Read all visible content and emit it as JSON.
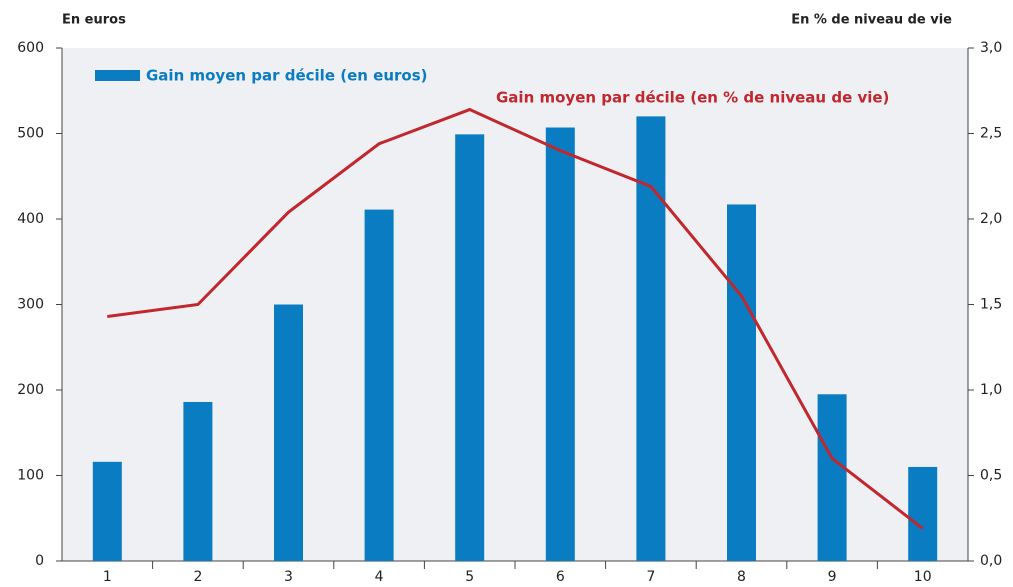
{
  "chart_data": {
    "type": "combo",
    "y_label": "En euros",
    "y2_label": "En % de niveau de vie",
    "categories": [
      "1",
      "2",
      "3",
      "4",
      "5",
      "6",
      "7",
      "8",
      "9",
      "10"
    ],
    "series": [
      {
        "name": "Gain moyen par décile (en euros)",
        "type": "bar",
        "color": "#0a7cc1",
        "values": [
          116,
          186,
          300,
          411,
          499,
          507,
          520,
          417,
          195,
          110
        ]
      },
      {
        "name": "Gain moyen par décile (en % de niveau de vie)",
        "type": "line",
        "color": "#c1272d",
        "axis": "y2",
        "values": [
          1.43,
          1.5,
          2.04,
          2.44,
          2.64,
          2.4,
          2.19,
          1.55,
          0.6,
          0.19
        ]
      }
    ],
    "ylim": [
      0,
      600
    ],
    "yticks": [
      0,
      100,
      200,
      300,
      400,
      500,
      600
    ],
    "y2lim": [
      0,
      3
    ],
    "y2ticks": [
      {
        "value": 0,
        "label": "0,0"
      },
      {
        "value": 0.5,
        "label": "0,5"
      },
      {
        "value": 1,
        "label": "1,0"
      },
      {
        "value": 1.5,
        "label": "1,5"
      },
      {
        "value": 2,
        "label": "2,0"
      },
      {
        "value": 2.5,
        "label": "2,5"
      },
      {
        "value": 3,
        "label": "3,0"
      }
    ],
    "grid": false
  }
}
